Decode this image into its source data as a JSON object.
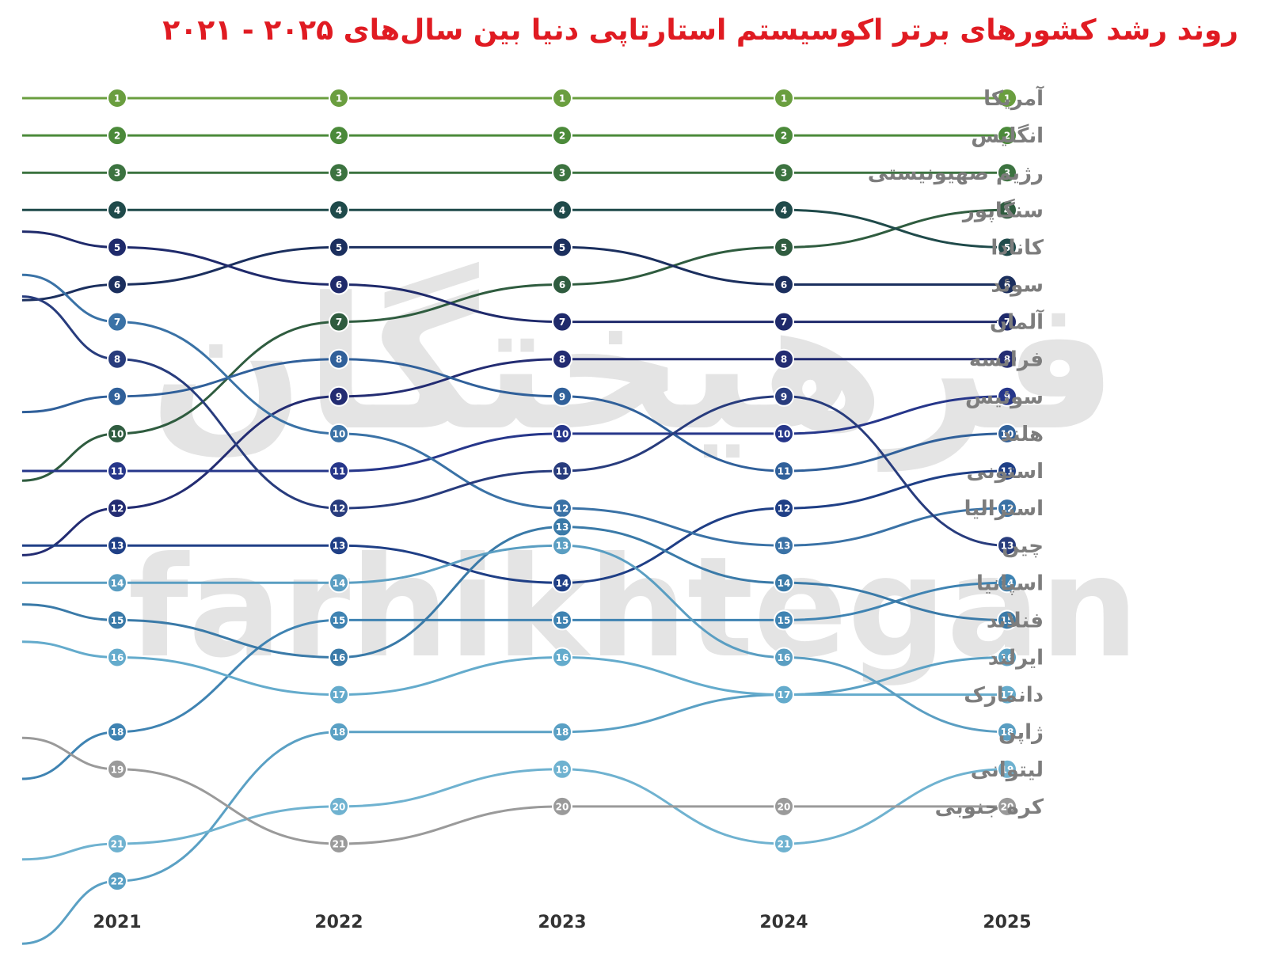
{
  "chart_data": {
    "type": "line",
    "subtype": "bump",
    "title": "روند رشد کشورهای برتر اکوسیستم استارتاپی دنیا بین سال‌های ۲۰۲۵ - ۲۰۲۱",
    "x": [
      "2021",
      "2022",
      "2023",
      "2024",
      "2025"
    ],
    "y_inverted": true,
    "ylim": [
      1,
      22
    ],
    "grid": false,
    "legend": "right",
    "watermark": {
      "line1": "فرهیختگان",
      "line2": "farhikhtegan"
    },
    "series": [
      {
        "name": "آمریکا",
        "color": "#6a9e3f",
        "values": [
          1,
          1,
          1,
          1,
          1
        ]
      },
      {
        "name": "انگلیس",
        "color": "#4b8a3a",
        "values": [
          2,
          2,
          2,
          2,
          2
        ]
      },
      {
        "name": "رژیم صهیونیستی",
        "color": "#3c7340",
        "values": [
          3,
          3,
          3,
          3,
          3
        ]
      },
      {
        "name": "سنگاپور",
        "color": "#2f5c3f",
        "values": [
          10,
          7,
          6,
          5,
          4
        ]
      },
      {
        "name": "کانادا",
        "color": "#1f4a4a",
        "values": [
          4,
          4,
          4,
          4,
          5
        ]
      },
      {
        "name": "سوئد",
        "color": "#1b2f5e",
        "values": [
          6,
          5,
          5,
          6,
          6
        ]
      },
      {
        "name": "آلمان",
        "color": "#1f2a6b",
        "values": [
          5,
          6,
          7,
          7,
          7
        ]
      },
      {
        "name": "فرانسه",
        "color": "#232c72",
        "values": [
          12,
          9,
          8,
          8,
          8
        ]
      },
      {
        "name": "سوئیس",
        "color": "#26368a",
        "values": [
          11,
          11,
          10,
          10,
          9
        ]
      },
      {
        "name": "هلند",
        "color": "#30609a",
        "values": [
          9,
          8,
          9,
          11,
          10
        ]
      },
      {
        "name": "استونی",
        "color": "#1f3f86",
        "values": [
          13,
          13,
          14,
          12,
          11
        ]
      },
      {
        "name": "استرالیا",
        "color": "#3a72a6",
        "values": [
          7,
          10,
          12,
          13,
          12
        ]
      },
      {
        "name": "چین",
        "color": "#283c7d",
        "values": [
          8,
          12,
          11,
          9,
          13
        ]
      },
      {
        "name": "اسپانیا",
        "color": "#3f83b2",
        "values": [
          18,
          15,
          15,
          15,
          14
        ]
      },
      {
        "name": "فنلاند",
        "color": "#3a7aa8",
        "values": [
          15,
          16,
          12.5,
          14,
          15
        ]
      },
      {
        "name": "ایرلند",
        "color": "#5aa0c4",
        "values": [
          22,
          18,
          18,
          17,
          16
        ]
      },
      {
        "name": "دانمارک",
        "color": "#64abcc",
        "values": [
          16,
          17,
          16,
          17,
          17
        ]
      },
      {
        "name": "ژاپن",
        "color": "#5a9ec2",
        "values": [
          14,
          14,
          13,
          16,
          18
        ]
      },
      {
        "name": "لیتوانی",
        "color": "#6fb2d0",
        "values": [
          21,
          20,
          19,
          21,
          19
        ]
      },
      {
        "name": "کره جنوبی",
        "color": "#9a9a9a",
        "values": [
          19,
          21,
          20,
          20,
          20
        ]
      }
    ]
  }
}
